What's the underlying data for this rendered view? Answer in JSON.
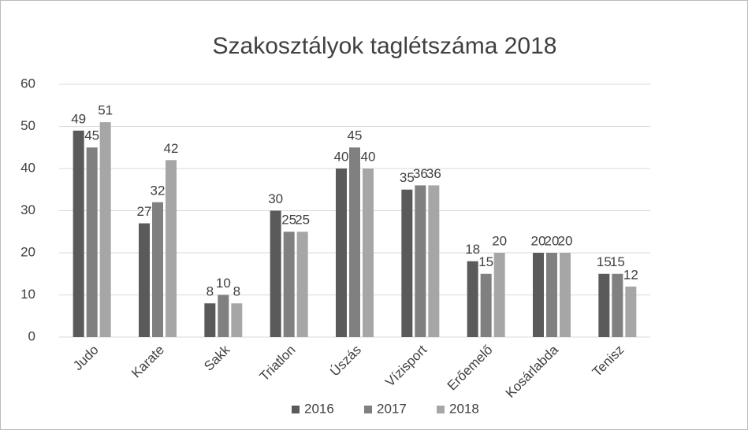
{
  "chart_data": {
    "type": "bar",
    "title": "Szakosztályok taglétszáma 2018",
    "categories": [
      "Judo",
      "Karate",
      "Sakk",
      "Triatlon",
      "Úszás",
      "Vízisport",
      "Erőemelő",
      "Kosárlabda",
      "Tenisz"
    ],
    "series": [
      {
        "name": "2016",
        "color": "#5a5a5a",
        "values": [
          49,
          27,
          8,
          30,
          40,
          35,
          18,
          20,
          15
        ]
      },
      {
        "name": "2017",
        "color": "#808080",
        "values": [
          45,
          32,
          10,
          25,
          45,
          36,
          15,
          20,
          15
        ]
      },
      {
        "name": "2018",
        "color": "#a6a6a6",
        "values": [
          51,
          42,
          8,
          25,
          40,
          36,
          20,
          20,
          12
        ]
      }
    ],
    "ylim": [
      0,
      60
    ],
    "yticks": [
      0,
      10,
      20,
      30,
      40,
      50,
      60
    ],
    "grid": true,
    "legend": "bottom"
  }
}
